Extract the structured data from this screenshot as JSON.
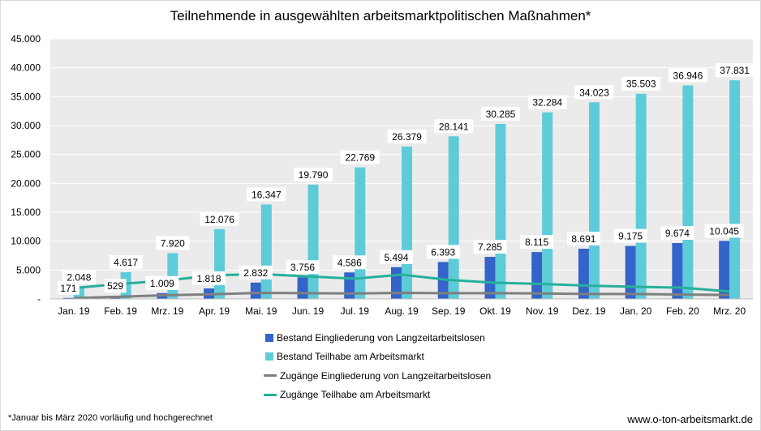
{
  "chart_data": {
    "type": "bar",
    "title": "Teilnehmende in ausgewählten arbeitsmarktpolitischen Maßnahmen*",
    "categories": [
      "Jan. 19",
      "Feb. 19",
      "Mrz. 19",
      "Apr. 19",
      "Mai. 19",
      "Jun. 19",
      "Jul. 19",
      "Aug. 19",
      "Sep. 19",
      "Okt. 19",
      "Nov. 19",
      "Dez. 19",
      "Jan. 20",
      "Feb. 20",
      "Mrz. 20"
    ],
    "ylim": [
      0,
      45000
    ],
    "yticks": [
      0,
      5000,
      10000,
      15000,
      20000,
      25000,
      30000,
      35000,
      40000,
      45000
    ],
    "ytick_labels": [
      "-",
      "5.000",
      "10.000",
      "15.000",
      "20.000",
      "25.000",
      "30.000",
      "35.000",
      "40.000",
      "45.000"
    ],
    "grid": true,
    "legend_position": "bottom",
    "series": [
      {
        "name": "Bestand Eingliederung von Langzeitarbeitslosen",
        "kind": "bar",
        "color": "#3463c9",
        "values": [
          171,
          529,
          1009,
          1818,
          2832,
          3756,
          4586,
          5494,
          6393,
          7285,
          8115,
          8691,
          9175,
          9674,
          10045
        ],
        "labels": [
          "171",
          "529",
          "1.009",
          "1.818",
          "2.832",
          "3.756",
          "4.586",
          "5.494",
          "6.393",
          "7.285",
          "8.115",
          "8.691",
          "9.175",
          "9.674",
          "10.045"
        ]
      },
      {
        "name": "Bestand Teilhabe am Arbeitsmarkt",
        "kind": "bar",
        "color": "#5ecbd9",
        "values": [
          2048,
          4617,
          7920,
          12076,
          16347,
          19790,
          22769,
          26379,
          28141,
          30285,
          32284,
          34023,
          35503,
          36946,
          37831
        ],
        "labels": [
          "2.048",
          "4.617",
          "7.920",
          "12.076",
          "16.347",
          "19.790",
          "22.769",
          "26.379",
          "28.141",
          "30.285",
          "32.284",
          "34.023",
          "35.503",
          "36.946",
          "37.831"
        ]
      },
      {
        "name": "Zugänge Eingliederung von Langzeitarbeitslosen",
        "kind": "line",
        "color": "#7f7f7f",
        "values": [
          150,
          380,
          650,
          820,
          1050,
          1000,
          950,
          1050,
          1000,
          1000,
          950,
          850,
          850,
          750,
          700
        ]
      },
      {
        "name": "Zugänge Teilhabe am Arbeitsmarkt",
        "kind": "line",
        "color": "#26b09b",
        "values": [
          1900,
          2600,
          3200,
          4100,
          4300,
          3900,
          3500,
          4200,
          3300,
          2800,
          2600,
          2300,
          2100,
          1950,
          1300
        ]
      }
    ]
  },
  "footnote": "*Januar bis März 2020 vorläufig und hochgerechnet",
  "website": "www.o-ton-arbeitsmarkt.de"
}
